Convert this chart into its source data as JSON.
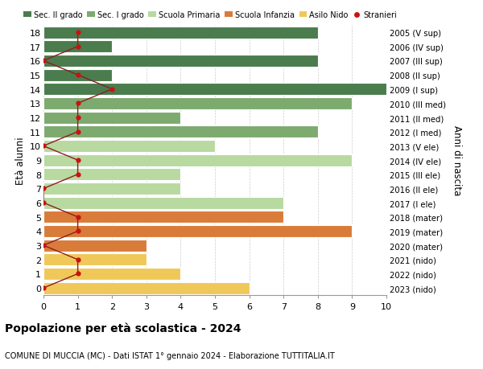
{
  "ages": [
    18,
    17,
    16,
    15,
    14,
    13,
    12,
    11,
    10,
    9,
    8,
    7,
    6,
    5,
    4,
    3,
    2,
    1,
    0
  ],
  "years": [
    "2005 (V sup)",
    "2006 (IV sup)",
    "2007 (III sup)",
    "2008 (II sup)",
    "2009 (I sup)",
    "2010 (III med)",
    "2011 (II med)",
    "2012 (I med)",
    "2013 (V ele)",
    "2014 (IV ele)",
    "2015 (III ele)",
    "2016 (II ele)",
    "2017 (I ele)",
    "2018 (mater)",
    "2019 (mater)",
    "2020 (mater)",
    "2021 (nido)",
    "2022 (nido)",
    "2023 (nido)"
  ],
  "bar_values": [
    8,
    2,
    8,
    2,
    10,
    9,
    4,
    8,
    5,
    9,
    4,
    4,
    7,
    7,
    9,
    3,
    3,
    4,
    6
  ],
  "bar_colors": [
    "#4a7c4e",
    "#4a7c4e",
    "#4a7c4e",
    "#4a7c4e",
    "#4a7c4e",
    "#7daa6f",
    "#7daa6f",
    "#7daa6f",
    "#b8d9a0",
    "#b8d9a0",
    "#b8d9a0",
    "#b8d9a0",
    "#b8d9a0",
    "#d97c3a",
    "#d97c3a",
    "#d97c3a",
    "#f0c85a",
    "#f0c85a",
    "#f0c85a"
  ],
  "stranieri_values": [
    1,
    1,
    0,
    1,
    2,
    1,
    1,
    1,
    0,
    1,
    1,
    0,
    0,
    1,
    1,
    0,
    1,
    1,
    0
  ],
  "legend_labels": [
    "Sec. II grado",
    "Sec. I grado",
    "Scuola Primaria",
    "Scuola Infanzia",
    "Asilo Nido",
    "Stranieri"
  ],
  "legend_colors": [
    "#4a7c4e",
    "#7daa6f",
    "#b8d9a0",
    "#d97c3a",
    "#f0c85a",
    "#cc1111"
  ],
  "ylabel_left": "Età alunni",
  "ylabel_right": "Anni di nascita",
  "title": "Popolazione per età scolastica - 2024",
  "subtitle": "COMUNE DI MUCCIA (MC) - Dati ISTAT 1° gennaio 2024 - Elaborazione TUTTITALIA.IT",
  "xlim": [
    0,
    10
  ],
  "stranieri_color": "#cc1111",
  "stranieri_line_color": "#8b2020",
  "bg_color": "#ffffff",
  "grid_color": "#cccccc",
  "bar_height": 0.85
}
